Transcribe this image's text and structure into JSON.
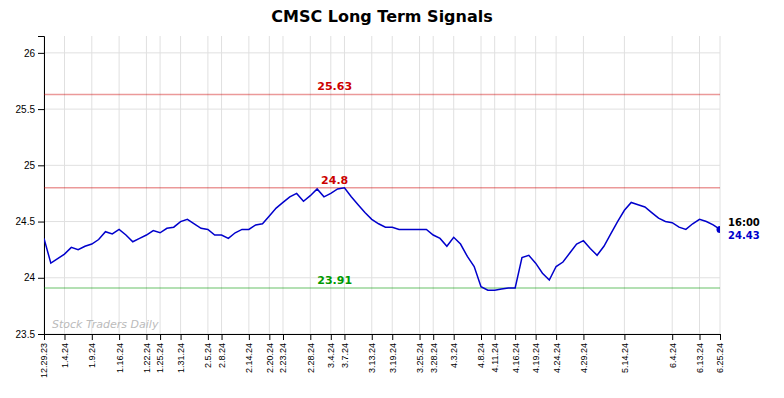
{
  "chart_data": {
    "type": "line",
    "title": "CMSC Long Term Signals",
    "color": "#0000CC",
    "grid": true,
    "categories": [
      "12.29.23",
      null,
      null,
      "1.4.24",
      null,
      null,
      null,
      "1.9.24",
      null,
      null,
      null,
      "1.16.24",
      null,
      null,
      null,
      "1.22.24",
      null,
      "1.25.24",
      null,
      null,
      "1.31.24",
      null,
      null,
      null,
      "2.5.24",
      null,
      "2.8.24",
      null,
      null,
      null,
      "2.14.24",
      null,
      null,
      "2.20.24",
      null,
      "2.23.24",
      null,
      null,
      null,
      "2.28.24",
      null,
      null,
      "3.4.24",
      null,
      "3.7.24",
      null,
      null,
      null,
      "3.13.24",
      null,
      null,
      "3.19.24",
      null,
      null,
      null,
      "3.25.24",
      null,
      "3.28.24",
      null,
      null,
      "4.3.24",
      null,
      null,
      null,
      "4.8.24",
      null,
      "4.11.24",
      null,
      null,
      "4.16.24",
      null,
      null,
      "4.19.24",
      null,
      null,
      "4.24.24",
      null,
      null,
      null,
      "4.29.24",
      null,
      null,
      null,
      null,
      null,
      "5.14.24",
      null,
      null,
      null,
      null,
      null,
      null,
      "6.4.24",
      null,
      null,
      null,
      "6.13.24",
      null,
      null,
      "6.25.24"
    ],
    "values": [
      24.35,
      24.13,
      24.17,
      24.21,
      24.27,
      24.25,
      24.28,
      24.3,
      24.34,
      24.41,
      24.39,
      24.43,
      24.38,
      24.32,
      24.35,
      24.38,
      24.42,
      24.4,
      24.44,
      24.45,
      24.5,
      24.52,
      24.48,
      24.44,
      24.43,
      24.38,
      24.38,
      24.35,
      24.4,
      24.43,
      24.43,
      24.47,
      24.48,
      24.55,
      24.62,
      24.67,
      24.72,
      24.75,
      24.68,
      24.73,
      24.79,
      24.72,
      24.75,
      24.79,
      24.8,
      24.72,
      24.65,
      24.58,
      24.52,
      24.48,
      24.45,
      24.45,
      24.43,
      24.43,
      24.43,
      24.43,
      24.43,
      24.38,
      24.35,
      24.28,
      24.36,
      24.3,
      24.19,
      24.1,
      23.92,
      23.89,
      23.89,
      23.9,
      23.91,
      23.91,
      24.18,
      24.2,
      24.13,
      24.04,
      23.98,
      24.1,
      24.14,
      24.22,
      24.3,
      24.33,
      24.26,
      24.2,
      24.28,
      24.39,
      24.5,
      24.6,
      24.67,
      24.65,
      24.63,
      24.58,
      24.53,
      24.5,
      24.49,
      24.45,
      24.43,
      24.48,
      24.52,
      24.5,
      24.47,
      24.43
    ],
    "ylim": [
      23.5,
      26.15
    ],
    "yticks": [
      23.5,
      24,
      24.5,
      25,
      25.5,
      26
    ],
    "hlines": [
      {
        "value": 25.63,
        "label": "25.63",
        "color": "#CC0000"
      },
      {
        "value": 24.8,
        "label": "24.8",
        "color": "#CC0000"
      },
      {
        "value": 23.91,
        "label": "23.91",
        "color": "#009900"
      }
    ],
    "end_label": "16:00",
    "end_value": 24.43,
    "watermark": "Stock Traders Daily"
  }
}
